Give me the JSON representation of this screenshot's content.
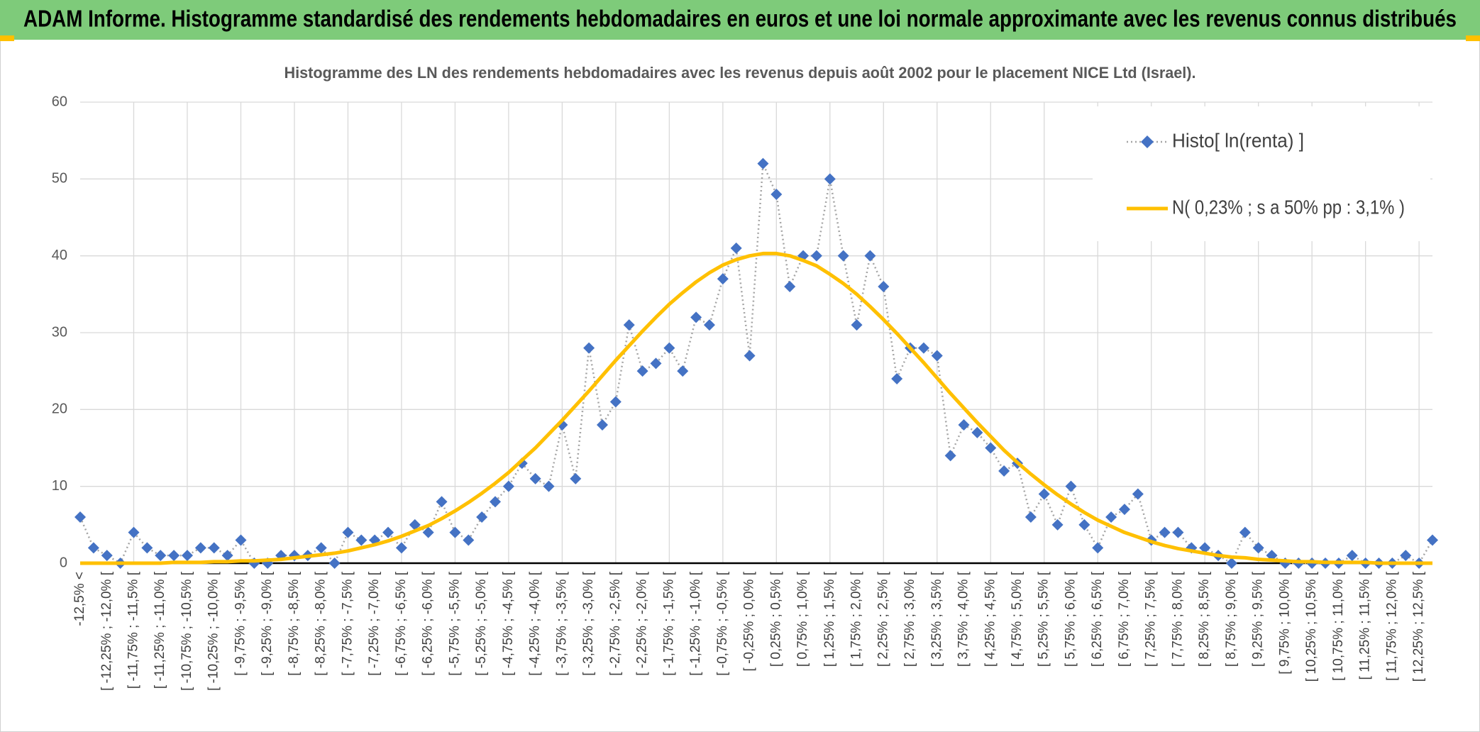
{
  "chart_data": {
    "type": "line",
    "header": "ADAM Informe. Histogramme standardisé des rendements hebdomadaires en euros et une loi normale approximante avec les revenus connus distribués",
    "title": "Histogramme des LN des rendements hebdomadaires avec les revenus depuis août 2002 pour le placement NICE Ltd (Israel).",
    "categories": [
      "-12,5% <",
      null,
      "[ -12,25% ; -12,0% [",
      null,
      "[ -11,75% ; -11,5% [",
      null,
      "[ -11,25% ; -11,0% [",
      null,
      "[ -10,75% ; -10,5% [",
      null,
      "[ -10,25% ; -10,0% [",
      null,
      "[ -9,75% ; -9,5% [",
      null,
      "[ -9,25% ; -9,0% [",
      null,
      "[ -8,75% ; -8,5% [",
      null,
      "[ -8,25% ; -8,0% [",
      null,
      "[ -7,75% ; -7,5% [",
      null,
      "[ -7,25% ; -7,0% [",
      null,
      "[ -6,75% ; -6,5% [",
      null,
      "[ -6,25% ; -6,0% [",
      null,
      "[ -5,75% ; -5,5% [",
      null,
      "[ -5,25% ; -5,0% [",
      null,
      "[ -4,75% ; -4,5% [",
      null,
      "[ -4,25% ; -4,0% [",
      null,
      "[ -3,75% ; -3,5% [",
      null,
      "[ -3,25% ; -3,0% [",
      null,
      "[ -2,75% ; -2,5% [",
      null,
      "[ -2,25% ; -2,0% [",
      null,
      "[ -1,75% ; -1,5% [",
      null,
      "[ -1,25% ; -1,0% [",
      null,
      "[ -0,75% ; -0,5% [",
      null,
      "[ -0,25% ; 0,0% [",
      null,
      "[ 0,25% ; 0,5% [",
      null,
      "[ 0,75% ; 1,0% [",
      null,
      "[ 1,25% ; 1,5% [",
      null,
      "[ 1,75% ; 2,0% [",
      null,
      "[ 2,25% ; 2,5% [",
      null,
      "[ 2,75% ; 3,0% [",
      null,
      "[ 3,25% ; 3,5% [",
      null,
      "[ 3,75% ; 4,0% [",
      null,
      "[ 4,25% ; 4,5% [",
      null,
      "[ 4,75% ; 5,0% [",
      null,
      "[ 5,25% ; 5,5% [",
      null,
      "[ 5,75% ; 6,0% [",
      null,
      "[ 6,25% ; 6,5% [",
      null,
      "[ 6,75% ; 7,0% [",
      null,
      "[ 7,25% ; 7,5% [",
      null,
      "[ 7,75% ; 8,0% [",
      null,
      "[ 8,25% ; 8,5% [",
      null,
      "[ 8,75% ; 9,0% [",
      null,
      "[ 9,25% ; 9,5% [",
      null,
      "[ 9,75% ; 10,0% [",
      null,
      "[ 10,25% ; 10,5% [",
      null,
      "[ 10,75% ; 11,0% [",
      null,
      "[ 11,25% ; 11,5% [",
      null,
      "[ 11,75% ; 12,0% [",
      null,
      "[ 12,25% ; 12,5% [",
      null
    ],
    "series": [
      {
        "name": "Histo[ ln(renta) ]",
        "color": "#4472c4",
        "values": [
          6,
          2,
          1,
          0,
          4,
          2,
          1,
          1,
          1,
          2,
          2,
          1,
          3,
          0,
          0,
          1,
          1,
          1,
          2,
          0,
          4,
          3,
          3,
          4,
          2,
          5,
          4,
          8,
          4,
          3,
          6,
          8,
          10,
          13,
          11,
          10,
          18,
          11,
          28,
          18,
          21,
          31,
          25,
          26,
          28,
          25,
          32,
          31,
          37,
          41,
          27,
          52,
          48,
          36,
          40,
          40,
          50,
          40,
          31,
          40,
          36,
          24,
          28,
          28,
          27,
          14,
          18,
          17,
          15,
          12,
          13,
          6,
          9,
          5,
          10,
          5,
          2,
          6,
          7,
          9,
          3,
          4,
          4,
          2,
          2,
          1,
          0,
          4,
          2,
          1,
          0,
          0,
          0,
          0,
          0,
          1,
          0,
          0,
          0,
          1,
          0,
          3
        ]
      },
      {
        "name": "N( 0,23% ; s a 50% pp : 3,1% )",
        "color": "#ffc000",
        "values": [
          0,
          0,
          0,
          0,
          0,
          0,
          0,
          0.1,
          0.1,
          0.1,
          0.2,
          0.2,
          0.3,
          0.3,
          0.4,
          0.5,
          0.7,
          0.9,
          1.1,
          1.3,
          1.6,
          2.0,
          2.4,
          2.9,
          3.5,
          4.2,
          4.9,
          5.8,
          6.8,
          7.9,
          9.1,
          10.4,
          11.8,
          13.4,
          15.0,
          16.8,
          18.6,
          20.5,
          22.4,
          24.4,
          26.4,
          28.3,
          30.2,
          32.0,
          33.7,
          35.2,
          36.6,
          37.8,
          38.8,
          39.5,
          40.0,
          40.3,
          40.3,
          40.0,
          39.4,
          38.7,
          37.6,
          36.4,
          35.0,
          33.4,
          31.7,
          29.9,
          28.0,
          26.1,
          24.1,
          22.1,
          20.2,
          18.3,
          16.5,
          14.7,
          13.1,
          11.6,
          10.2,
          8.9,
          7.7,
          6.6,
          5.6,
          4.8,
          4.0,
          3.4,
          2.8,
          2.3,
          1.9,
          1.6,
          1.3,
          1.0,
          0.8,
          0.7,
          0.5,
          0.4,
          0.3,
          0.2,
          0.2,
          0.1,
          0.1,
          0.1,
          0.1,
          0,
          0,
          0,
          0,
          0
        ]
      }
    ],
    "ylim": [
      0,
      60
    ],
    "yticks": [
      0,
      10,
      20,
      30,
      40,
      50,
      60
    ],
    "grid": true,
    "legend": "top-right"
  }
}
